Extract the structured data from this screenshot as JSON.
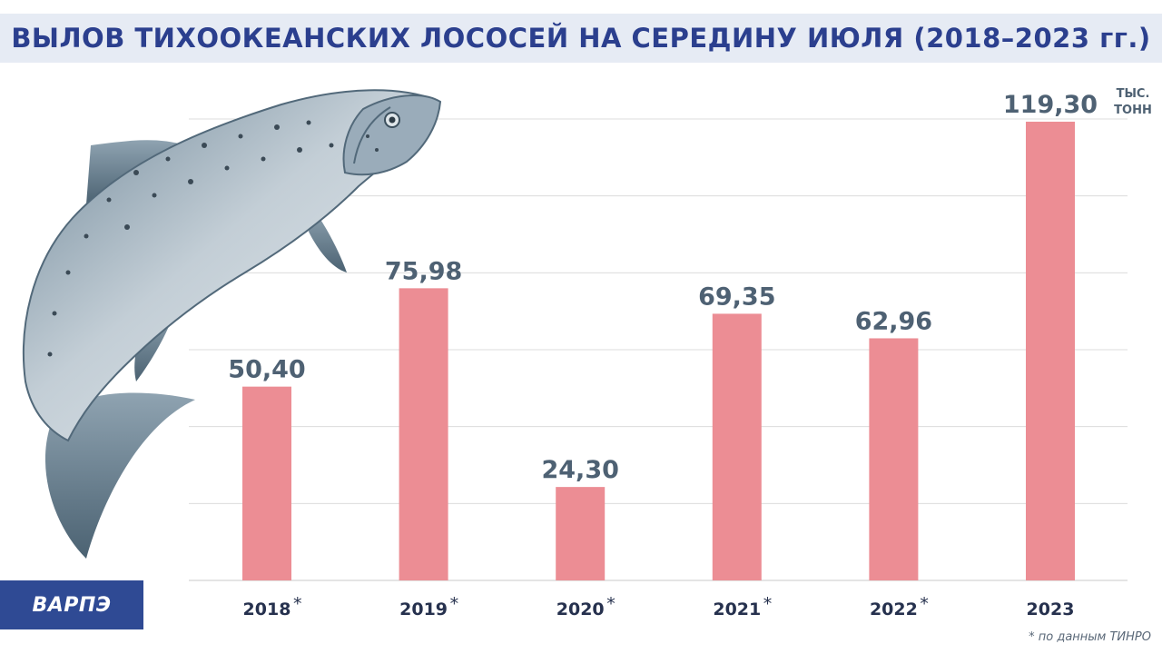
{
  "header": {
    "title": "ВЫЛОВ ТИХООКЕАНСКИХ ЛОСОСЕЙ НА СЕРЕДИНУ ИЮЛЯ (2018–2023 гг.)"
  },
  "chart_data": {
    "type": "bar",
    "categories": [
      "2018",
      "2019",
      "2020",
      "2021",
      "2022",
      "2023"
    ],
    "category_marks": [
      "*",
      "*",
      "*",
      "*",
      "*",
      ""
    ],
    "values": [
      50.4,
      75.98,
      24.3,
      69.35,
      62.96,
      119.3
    ],
    "value_labels": [
      "50,40",
      "75,98",
      "24,30",
      "69,35",
      "62,96",
      "119,30"
    ],
    "unit_lines": [
      "ТЫС.",
      "ТОНН"
    ],
    "ylim": [
      0,
      120
    ],
    "grid": true,
    "bar_color": "#ec8d94",
    "grid_color": "#dcdcdc"
  },
  "footnote": "* по данным ТИНРО",
  "logo": {
    "text": "ВАРПЭ",
    "color": "#2f4a94"
  },
  "illustration": {
    "icon": "salmon-fish-icon"
  }
}
